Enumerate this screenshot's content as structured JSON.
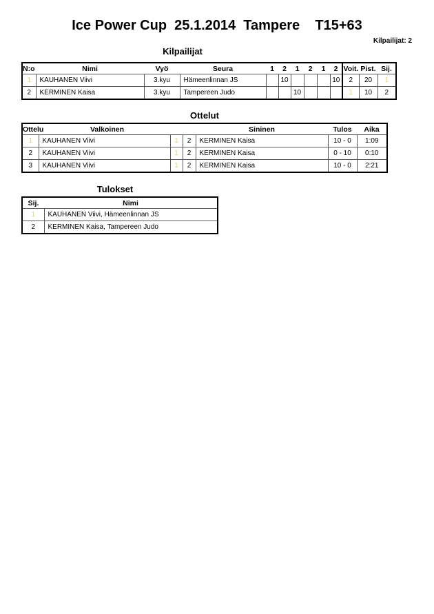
{
  "title": "Ice Power Cup  25.1.2014  Tampere    T15+63",
  "competitor_count": "Kilpailijat: 2",
  "competitors": {
    "heading": "Kilpailijat",
    "headers": [
      "N:o",
      "Nimi",
      "Vyö",
      "Seura",
      "1",
      "2",
      "1",
      "2",
      "1",
      "2",
      "Voit.",
      "Pist.",
      "Sij."
    ],
    "rows": [
      {
        "no": "1",
        "name": "KAUHANEN Viivi",
        "belt": "3.kyu",
        "club": "Hämeenlinnan JS",
        "scores": [
          "",
          "10",
          "",
          "",
          "",
          "10"
        ],
        "wins": "2",
        "points": "20",
        "place": "1"
      },
      {
        "no": "2",
        "name": "KERMINEN Kaisa",
        "belt": "3.kyu",
        "club": "Tampereen Judo",
        "scores": [
          "",
          "",
          "10",
          "",
          "",
          ""
        ],
        "wins": "1",
        "points": "10",
        "place": "2"
      }
    ]
  },
  "matches": {
    "heading": "Ottelut",
    "headers": [
      "Ottelu",
      "Valkoinen",
      "Sininen",
      "Tulos",
      "Aika"
    ],
    "rows": [
      {
        "no": "1",
        "white": "KAUHANEN Viivi",
        "white_no": "1",
        "blue_no": "2",
        "blue": "KERMINEN Kaisa",
        "result": "10 - 0",
        "time": "1:09"
      },
      {
        "no": "2",
        "white": "KAUHANEN Viivi",
        "white_no": "1",
        "blue_no": "2",
        "blue": "KERMINEN Kaisa",
        "result": "0 - 10",
        "time": "0:10"
      },
      {
        "no": "3",
        "white": "KAUHANEN Viivi",
        "white_no": "1",
        "blue_no": "2",
        "blue": "KERMINEN Kaisa",
        "result": "10 - 0",
        "time": "2:21"
      }
    ]
  },
  "results": {
    "heading": "Tulokset",
    "headers": [
      "Sij.",
      "Nimi"
    ],
    "rows": [
      {
        "place": "1",
        "name": "KAUHANEN Viivi, Hämeenlinnan JS"
      },
      {
        "place": "2",
        "name": "KERMINEN Kaisa, Tampereen Judo"
      }
    ]
  },
  "colors": {
    "first_place_number": "#e8d36a"
  }
}
